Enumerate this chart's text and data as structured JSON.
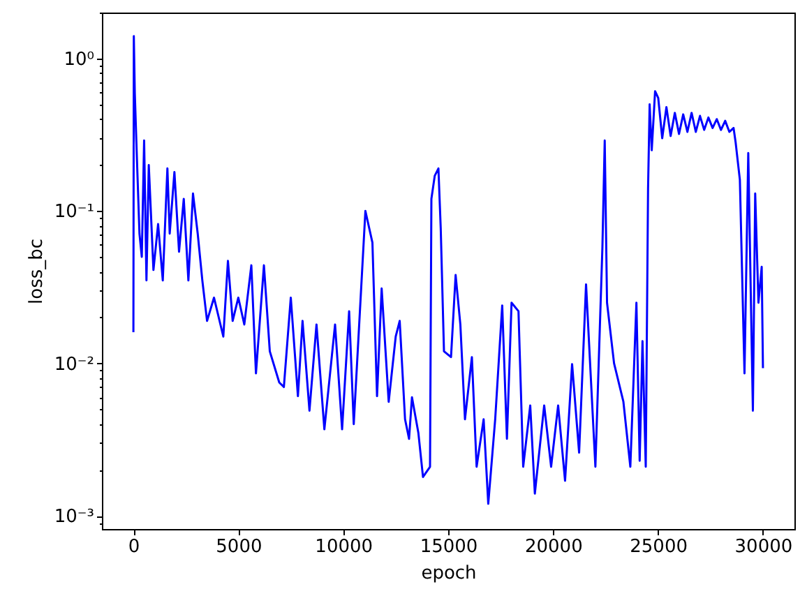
{
  "chart_data": {
    "type": "line",
    "xlabel": "epoch",
    "ylabel": "loss_bc",
    "log": "y",
    "grid": false,
    "marker": "none",
    "line_style": "solid",
    "xlim": [
      -1500,
      31500
    ],
    "xticks": [
      0,
      5000,
      10000,
      15000,
      20000,
      25000,
      30000
    ],
    "ylim": [
      0.00082,
      2.0
    ],
    "yticks": [
      {
        "value": 0.0009,
        "label": null
      },
      {
        "value": 0.001,
        "label": "10⁻³"
      },
      {
        "value": 0.002,
        "label": null
      },
      {
        "value": 0.003,
        "label": null
      },
      {
        "value": 0.004,
        "label": null
      },
      {
        "value": 0.005,
        "label": null
      },
      {
        "value": 0.006,
        "label": null
      },
      {
        "value": 0.007,
        "label": null
      },
      {
        "value": 0.008,
        "label": null
      },
      {
        "value": 0.009,
        "label": null
      },
      {
        "value": 0.01,
        "label": "10⁻²"
      },
      {
        "value": 0.02,
        "label": null
      },
      {
        "value": 0.03,
        "label": null
      },
      {
        "value": 0.04,
        "label": null
      },
      {
        "value": 0.05,
        "label": null
      },
      {
        "value": 0.06,
        "label": null
      },
      {
        "value": 0.07,
        "label": null
      },
      {
        "value": 0.08,
        "label": null
      },
      {
        "value": 0.09,
        "label": null
      },
      {
        "value": 0.1,
        "label": "10⁻¹"
      },
      {
        "value": 0.2,
        "label": null
      },
      {
        "value": 0.3,
        "label": null
      },
      {
        "value": 0.4,
        "label": null
      },
      {
        "value": 0.5,
        "label": null
      },
      {
        "value": 0.6,
        "label": null
      },
      {
        "value": 0.7,
        "label": null
      },
      {
        "value": 0.8,
        "label": null
      },
      {
        "value": 0.9,
        "label": null
      },
      {
        "value": 1,
        "label": "10⁰"
      },
      {
        "value": 2,
        "label": null
      }
    ],
    "series": [
      {
        "color": "#0000ff",
        "x": [
          0,
          20,
          67,
          178,
          289,
          400,
          511,
          622,
          733,
          955,
          1177,
          1400,
          1620,
          1730,
          1955,
          2175,
          2400,
          2620,
          2840,
          3065,
          3285,
          3510,
          3840,
          4285,
          4505,
          4730,
          5000,
          5285,
          5620,
          5840,
          6220,
          6500,
          6950,
          7170,
          7500,
          7840,
          8060,
          8390,
          8725,
          9100,
          9610,
          9945,
          10280,
          10500,
          11055,
          11390,
          11610,
          11830,
          12165,
          12500,
          12690,
          12945,
          13135,
          13275,
          13580,
          13800,
          14135,
          14200,
          14360,
          14535,
          14645,
          14800,
          15135,
          15355,
          15580,
          15800,
          16130,
          16355,
          16690,
          16910,
          17240,
          17575,
          17800,
          18020,
          18350,
          18575,
          18910,
          19130,
          19575,
          19905,
          20240,
          20570,
          20905,
          21240,
          21570,
          22015,
          22350,
          22460,
          22570,
          22905,
          23350,
          23680,
          23970,
          24125,
          24260,
          24415,
          24525,
          24600,
          24700,
          24860,
          25010,
          25200,
          25400,
          25600,
          25800,
          26000,
          26200,
          26400,
          26600,
          26800,
          27000,
          27200,
          27400,
          27600,
          27800,
          28000,
          28200,
          28400,
          28600,
          28700,
          28900,
          29120,
          29300,
          29520,
          29630,
          29785,
          29940,
          30000
        ],
        "values": [
          0.016,
          1.4,
          0.59,
          0.2,
          0.071,
          0.05,
          0.29,
          0.035,
          0.2,
          0.041,
          0.082,
          0.035,
          0.19,
          0.071,
          0.18,
          0.054,
          0.12,
          0.035,
          0.13,
          0.071,
          0.035,
          0.019,
          0.027,
          0.015,
          0.047,
          0.019,
          0.027,
          0.018,
          0.044,
          0.0086,
          0.044,
          0.012,
          0.0075,
          0.007,
          0.027,
          0.0061,
          0.019,
          0.0049,
          0.018,
          0.0037,
          0.018,
          0.0037,
          0.022,
          0.004,
          0.1,
          0.062,
          0.0061,
          0.031,
          0.0056,
          0.015,
          0.019,
          0.0043,
          0.0032,
          0.006,
          0.0035,
          0.0018,
          0.0021,
          0.12,
          0.17,
          0.19,
          0.077,
          0.012,
          0.011,
          0.038,
          0.018,
          0.0043,
          0.011,
          0.0021,
          0.0043,
          0.0012,
          0.0043,
          0.024,
          0.0032,
          0.025,
          0.022,
          0.0021,
          0.0053,
          0.0014,
          0.0053,
          0.0021,
          0.0053,
          0.0017,
          0.0099,
          0.0026,
          0.033,
          0.0021,
          0.058,
          0.29,
          0.025,
          0.01,
          0.0056,
          0.0021,
          0.025,
          0.0023,
          0.014,
          0.0021,
          0.14,
          0.5,
          0.25,
          0.61,
          0.55,
          0.3,
          0.48,
          0.31,
          0.44,
          0.32,
          0.43,
          0.33,
          0.44,
          0.33,
          0.42,
          0.34,
          0.41,
          0.35,
          0.4,
          0.34,
          0.39,
          0.33,
          0.35,
          0.28,
          0.16,
          0.0086,
          0.24,
          0.0049,
          0.13,
          0.025,
          0.043,
          0.0093
        ]
      }
    ]
  }
}
